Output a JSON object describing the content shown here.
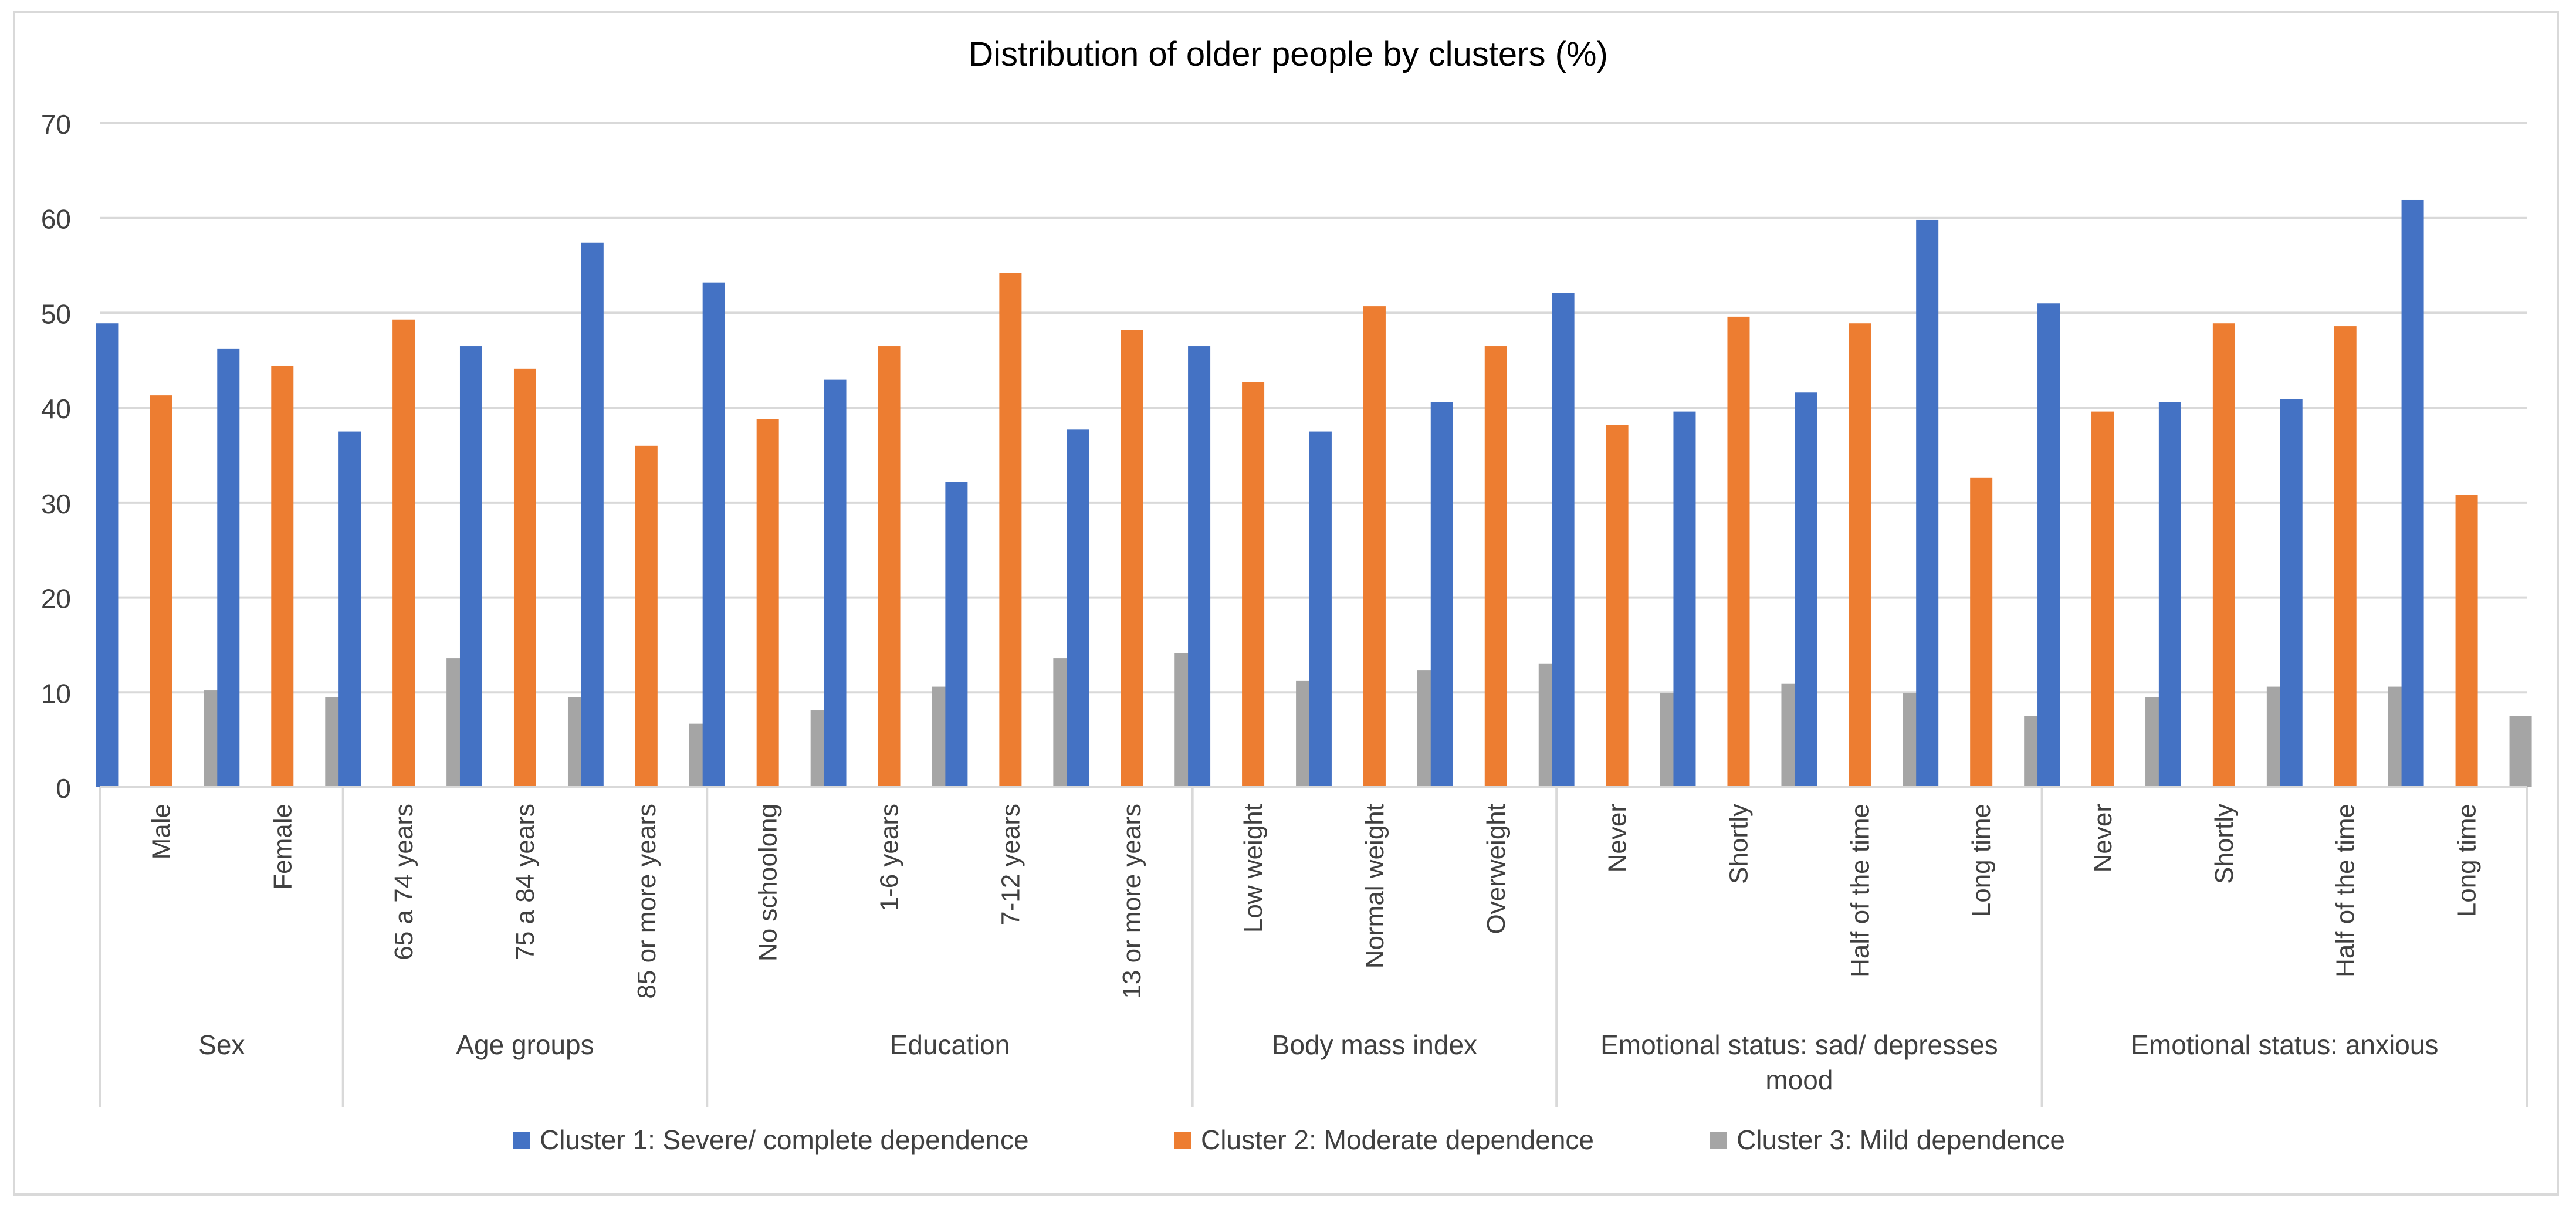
{
  "chart_data": {
    "type": "bar",
    "title": "Distribution of older people by clusters (%)",
    "xlabel": "",
    "ylabel": "",
    "ylim": [
      0,
      70
    ],
    "yticks": [
      0,
      10,
      20,
      30,
      40,
      50,
      60,
      70
    ],
    "grid": true,
    "legend_position": "bottom",
    "groups": [
      {
        "label": "Sex",
        "categories": [
          "Male",
          "Female"
        ]
      },
      {
        "label": "Age groups",
        "categories": [
          "65 a 74 years",
          "75 a 84 years",
          "85 or more years"
        ]
      },
      {
        "label": "Education",
        "categories": [
          "No schoolong",
          "1-6 years",
          "7-12 years",
          "13 or more years"
        ]
      },
      {
        "label": "Body mass index",
        "categories": [
          "Low weight",
          "Normal weight",
          "Overweight"
        ]
      },
      {
        "label": "Emotional status: sad/ depresses mood",
        "categories": [
          "Never",
          "Shortly",
          "Half of the time",
          "Long time"
        ]
      },
      {
        "label": "Emotional status: anxious",
        "categories": [
          "Never",
          "Shortly",
          "Half of the time",
          "Long time"
        ]
      }
    ],
    "series": [
      {
        "name": "Cluster 1: Severe/ complete dependence",
        "color": "#4472c4",
        "values": [
          48.9,
          46.2,
          37.5,
          46.5,
          57.4,
          53.2,
          43.0,
          32.2,
          37.7,
          46.5,
          37.5,
          40.6,
          52.1,
          39.6,
          41.6,
          59.8,
          51.0,
          40.6,
          40.9,
          61.9
        ]
      },
      {
        "name": "Cluster 2: Moderate dependence",
        "color": "#ed7d31",
        "values": [
          41.3,
          44.4,
          49.3,
          44.1,
          36.0,
          38.8,
          46.5,
          54.2,
          48.2,
          42.7,
          50.7,
          46.5,
          38.2,
          49.6,
          48.9,
          32.6,
          39.6,
          48.9,
          48.6,
          30.8
        ]
      },
      {
        "name": "Cluster 3: Mild dependence",
        "color": "#a5a5a5",
        "values": [
          10.2,
          9.5,
          13.6,
          9.5,
          6.7,
          8.1,
          10.6,
          13.6,
          14.1,
          11.2,
          12.3,
          13.0,
          9.9,
          10.9,
          9.9,
          7.5,
          9.5,
          10.6,
          10.6,
          7.5
        ]
      }
    ]
  }
}
